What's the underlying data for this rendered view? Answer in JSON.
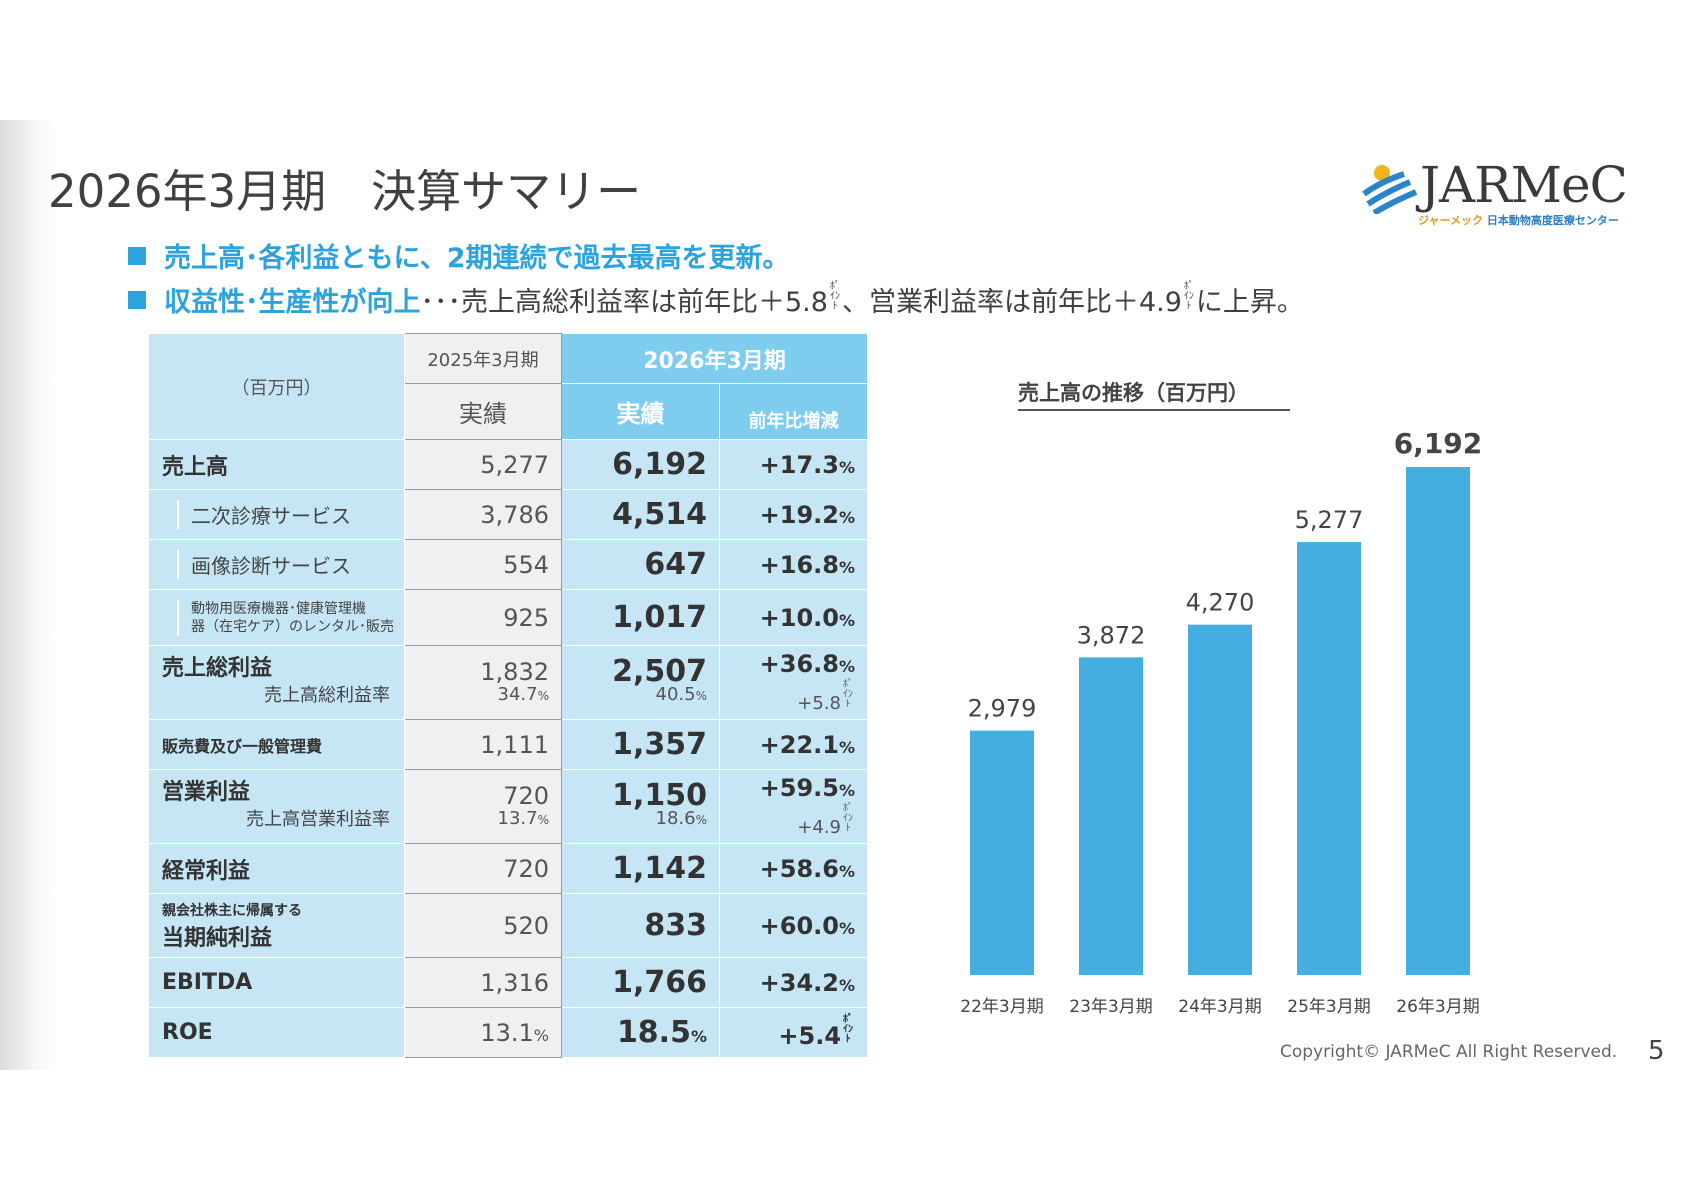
{
  "title": "2026年3月期　決算サマリー",
  "logo": {
    "name": "JARMeC",
    "kana": "ジャーメック",
    "subtitle": "日本動物高度医療センター"
  },
  "bullets": [
    {
      "highlight": "売上高･各利益ともに、2期連続で過去最高を更新。",
      "rest": ""
    },
    {
      "highlight": "収益性･生産性が向上",
      "rest": "･･･売上高総利益率は前年比＋5.8",
      "pt1": "ﾎﾟｲﾝﾄ",
      "mid": "、営業利益率は前年比＋4.9",
      "pt2": "ﾎﾟｲﾝﾄ",
      "end": "に上昇。"
    }
  ],
  "table": {
    "unit": "（百万円）",
    "prev_period": "2025年3月期",
    "cur_period": "2026年3月期",
    "actual": "実績",
    "cur_actual": "実績",
    "yoy": "前年比増減",
    "rows": [
      {
        "label": "売上高",
        "prev": "5,277",
        "cur": "6,192",
        "chg": "+17.3",
        "chg_unit": "%"
      },
      {
        "label": "二次診療サービス",
        "prev": "3,786",
        "cur": "4,514",
        "chg": "+19.2",
        "chg_unit": "%"
      },
      {
        "label": "画像診断サービス",
        "prev": "554",
        "cur": "647",
        "chg": "+16.8",
        "chg_unit": "%"
      },
      {
        "label_l1": "動物用医療機器･健康管理機",
        "label_l2": "器（在宅ケア）のレンタル･販売",
        "prev": "925",
        "cur": "1,017",
        "chg": "+10.0",
        "chg_unit": "%"
      },
      {
        "label": "売上総利益",
        "ratio_label": "売上高総利益率",
        "prev": "1,832",
        "prev_ratio": "34.7",
        "cur": "2,507",
        "cur_ratio": "40.5",
        "chg": "+36.8",
        "chg_unit": "%",
        "chg_ratio": "+5.8",
        "ratio_unit": "%",
        "pt": "ﾎﾟｲﾝﾄ"
      },
      {
        "label": "販売費及び一般管理費",
        "prev": "1,111",
        "cur": "1,357",
        "chg": "+22.1",
        "chg_unit": "%"
      },
      {
        "label": "営業利益",
        "ratio_label": "売上高営業利益率",
        "prev": "720",
        "prev_ratio": "13.7",
        "cur": "1,150",
        "cur_ratio": "18.6",
        "chg": "+59.5",
        "chg_unit": "%",
        "chg_ratio": "+4.9",
        "ratio_unit": "%",
        "pt": "ﾎﾟｲﾝﾄ"
      },
      {
        "label": "経常利益",
        "prev": "720",
        "cur": "1,142",
        "chg": "+58.6",
        "chg_unit": "%"
      },
      {
        "label_small": "親会社株主に帰属する",
        "label": "当期純利益",
        "prev": "520",
        "cur": "833",
        "chg": "+60.0",
        "chg_unit": "%"
      },
      {
        "label": "EBITDA",
        "prev": "1,316",
        "cur": "1,766",
        "chg": "+34.2",
        "chg_unit": "%"
      },
      {
        "label": "ROE",
        "prev": "13.1",
        "prev_unit": "%",
        "cur": "18.5",
        "cur_unit": "%",
        "chg": "+5.4",
        "pt": "ﾎﾟｲﾝﾄ"
      }
    ]
  },
  "chart_data": {
    "type": "bar",
    "title": "売上高の推移（百万円）",
    "categories": [
      "22年3月期",
      "23年3月期",
      "24年3月期",
      "25年3月期",
      "26年3月期"
    ],
    "values": [
      2979,
      3872,
      4270,
      5277,
      6192
    ],
    "value_labels": [
      "2,979",
      "3,872",
      "4,270",
      "5,277",
      "6,192"
    ],
    "ylim": [
      0,
      6192
    ],
    "bar_color": "#45aee0",
    "grid": false
  },
  "footer": "Copyright© JARMeC All Right Reserved.",
  "page_number": "5"
}
